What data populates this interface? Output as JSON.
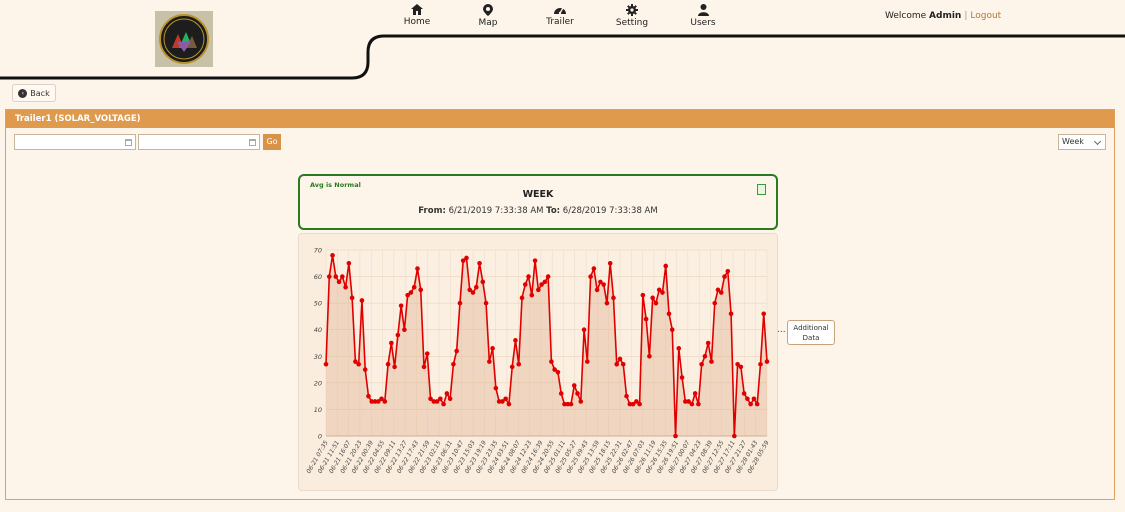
{
  "nav": {
    "items": [
      {
        "label": "Home",
        "icon": "home-icon"
      },
      {
        "label": "Map",
        "icon": "map-marker-icon"
      },
      {
        "label": "Trailer",
        "icon": "dashboard-icon"
      },
      {
        "label": "Setting",
        "icon": "gear-icon"
      },
      {
        "label": "Users",
        "icon": "user-icon"
      }
    ]
  },
  "user": {
    "welcome": "Welcome",
    "name": "Admin",
    "separator": "|",
    "logout": "Logout"
  },
  "back_label": "Back",
  "panel": {
    "title": "Trailer1 (SOLAR_VOLTAGE)"
  },
  "filters": {
    "start_date": "",
    "end_date": "",
    "go_label": "Go",
    "range_selected": "Week"
  },
  "summary": {
    "status": "Avg is Normal",
    "title": "WEEK",
    "from_label": "From:",
    "from_value": "6/21/2019 7:33:38 AM",
    "to_label": "To:",
    "to_value": "6/28/2019 7:33:38 AM"
  },
  "additional_data": {
    "line1": "Additional",
    "line2": "Data",
    "dots": "..."
  },
  "colors": {
    "accent": "#df9a4e",
    "line": "#e00000",
    "status_green": "#2a7a1f"
  },
  "chart_data": {
    "type": "area",
    "title": "",
    "xlabel": "",
    "ylabel": "",
    "ylim": [
      0,
      70
    ],
    "yticks": [
      0,
      10,
      20,
      30,
      40,
      50,
      60,
      70
    ],
    "xtick_labels": [
      "06-21 07:35",
      "06-21 11:51",
      "06-21 16:07",
      "06-21 20:23",
      "06-22 00:39",
      "06-22 04:55",
      "06-22 09:11",
      "06-22 13:27",
      "06-22 17:43",
      "06-22 21:59",
      "06-23 02:15",
      "06-23 06:31",
      "06-23 10:47",
      "06-23 15:03",
      "06-23 19:19",
      "06-23 23:35",
      "06-24 03:51",
      "06-24 08:07",
      "06-24 12:23",
      "06-24 16:39",
      "06-24 20:55",
      "06-25 01:11",
      "06-25 05:27",
      "06-25 09:43",
      "06-25 13:59",
      "06-25 18:15",
      "06-25 22:31",
      "06-26 02:47",
      "06-26 07:03",
      "06-26 11:19",
      "06-26 15:35",
      "06-26 19:51",
      "06-27 00:07",
      "06-27 04:23",
      "06-27 08:39",
      "06-27 12:55",
      "06-27 17:11",
      "06-27 21:27",
      "06-28 01:43",
      "06-28 05:59"
    ],
    "series": [
      {
        "values": [
          27,
          60,
          68,
          60,
          58,
          60,
          56,
          65,
          52,
          28,
          27,
          51,
          25,
          15,
          13,
          13,
          13,
          14,
          13,
          27,
          35,
          26,
          38,
          49,
          40,
          53,
          54,
          56,
          63,
          55,
          26,
          31,
          14,
          13,
          13,
          14,
          12,
          16,
          14,
          27,
          32,
          50,
          66,
          67,
          55,
          54,
          56,
          65,
          58,
          50,
          28,
          33,
          18,
          13,
          13,
          14,
          12,
          26,
          36,
          27,
          52,
          57,
          60,
          53,
          66,
          55,
          57,
          58,
          60,
          28,
          25,
          24,
          16,
          12,
          12,
          12,
          19,
          16,
          13,
          40,
          28,
          60,
          63,
          55,
          58,
          57,
          50,
          65,
          52,
          27,
          29,
          27,
          15,
          12,
          12,
          13,
          12,
          53,
          44,
          30,
          52,
          50,
          55,
          54,
          64,
          46,
          40,
          0,
          33,
          22,
          13,
          13,
          12,
          16,
          12,
          27,
          30,
          35,
          28,
          50,
          55,
          54,
          60,
          62,
          46,
          0,
          27,
          26,
          16,
          14,
          12,
          14,
          12,
          27,
          46,
          28
        ]
      }
    ]
  }
}
